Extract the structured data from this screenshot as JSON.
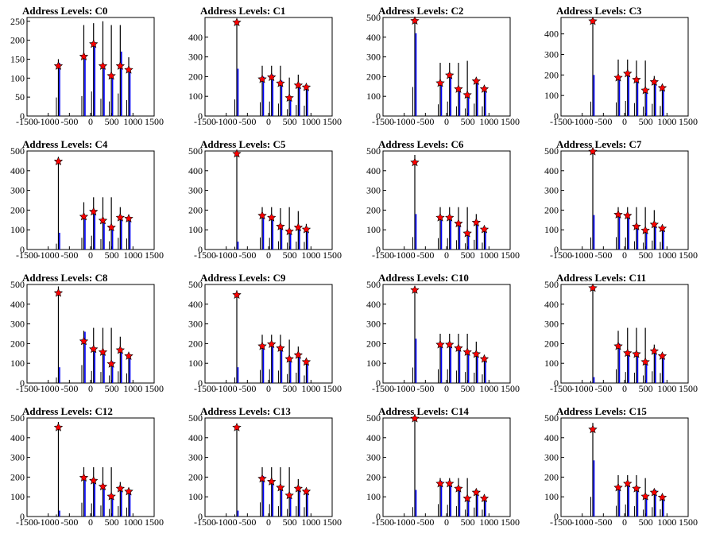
{
  "figure": {
    "title_prefix": "Address Levels: "
  },
  "style": {
    "axis_color": "#000000",
    "bar_black": "#000000",
    "bar_blue": "#0000ff",
    "star_fill": "#ff0000",
    "star_stroke": "#000000"
  },
  "chart_data": [
    {
      "type": "histogram",
      "title": "Address Levels: C0",
      "xlim": [
        -1500,
        1500
      ],
      "ylim": [
        0,
        260
      ],
      "yticks": [
        0,
        50,
        100,
        150,
        200,
        250
      ],
      "xticks": [
        -1500,
        -1000,
        -500,
        0,
        500,
        1000,
        1500
      ],
      "peaks_x": [
        -760,
        -160,
        70,
        290,
        490,
        700,
        900
      ],
      "black": [
        150,
        240,
        245,
        250,
        240,
        240,
        155
      ],
      "blue": [
        140,
        150,
        185,
        130,
        110,
        170,
        120
      ],
      "stars": [
        132,
        157,
        190,
        132,
        106,
        132,
        122
      ]
    },
    {
      "type": "histogram",
      "title": "Address Levels: C1",
      "xlim": [
        -1500,
        1500
      ],
      "ylim": [
        0,
        500
      ],
      "yticks": [
        0,
        100,
        200,
        300,
        400
      ],
      "xticks": [
        -1500,
        -1000,
        -500,
        0,
        500,
        1000,
        1500
      ],
      "peaks_x": [
        -750,
        -150,
        70,
        280,
        490,
        700,
        890
      ],
      "black": [
        490,
        255,
        255,
        255,
        195,
        210,
        160
      ],
      "blue": [
        240,
        200,
        210,
        180,
        100,
        160,
        150
      ],
      "stars": [
        475,
        187,
        197,
        166,
        92,
        156,
        146
      ]
    },
    {
      "type": "histogram",
      "title": "Address Levels: C2",
      "xlim": [
        -1500,
        1500
      ],
      "ylim": [
        0,
        500
      ],
      "yticks": [
        0,
        100,
        200,
        300,
        400,
        500
      ],
      "xticks": [
        -1500,
        -1000,
        -500,
        0,
        500,
        1000,
        1500
      ],
      "peaks_x": [
        -750,
        -150,
        70,
        280,
        490,
        700,
        890
      ],
      "black": [
        490,
        270,
        270,
        270,
        280,
        185,
        140
      ],
      "blue": [
        420,
        170,
        210,
        140,
        110,
        180,
        140
      ],
      "stars": [
        483,
        167,
        207,
        137,
        107,
        177,
        137
      ]
    },
    {
      "type": "histogram",
      "title": "Address Levels: C3",
      "xlim": [
        -1500,
        1500
      ],
      "ylim": [
        0,
        480
      ],
      "yticks": [
        0,
        100,
        200,
        300,
        400
      ],
      "xticks": [
        -1500,
        -1000,
        -500,
        0,
        500,
        1000,
        1500
      ],
      "peaks_x": [
        -750,
        -150,
        70,
        280,
        490,
        700,
        890
      ],
      "black": [
        480,
        275,
        275,
        270,
        270,
        195,
        140
      ],
      "blue": [
        200,
        190,
        210,
        180,
        130,
        170,
        140
      ],
      "stars": [
        462,
        187,
        207,
        177,
        125,
        166,
        137
      ]
    },
    {
      "type": "histogram",
      "title": "Address Levels: C4",
      "xlim": [
        -1500,
        1500
      ],
      "ylim": [
        0,
        500
      ],
      "yticks": [
        0,
        100,
        200,
        300,
        400,
        500
      ],
      "xticks": [
        -1500,
        -1000,
        -500,
        0,
        500,
        1000,
        1500
      ],
      "peaks_x": [
        -760,
        -160,
        70,
        290,
        490,
        700,
        900
      ],
      "black": [
        470,
        240,
        265,
        265,
        265,
        215,
        175
      ],
      "blue": [
        85,
        170,
        200,
        150,
        120,
        170,
        160
      ],
      "stars": [
        447,
        167,
        192,
        147,
        112,
        162,
        157
      ]
    },
    {
      "type": "histogram",
      "title": "Address Levels: C5",
      "xlim": [
        -1500,
        1500
      ],
      "ylim": [
        0,
        500
      ],
      "yticks": [
        0,
        100,
        200,
        300,
        400,
        500
      ],
      "xticks": [
        -1500,
        -1000,
        -500,
        0,
        500,
        1000,
        1500
      ],
      "peaks_x": [
        -750,
        -150,
        70,
        280,
        490,
        700,
        890
      ],
      "black": [
        495,
        215,
        215,
        210,
        215,
        195,
        130
      ],
      "blue": [
        40,
        175,
        170,
        120,
        100,
        115,
        110
      ],
      "stars": [
        486,
        172,
        162,
        117,
        92,
        112,
        102
      ]
    },
    {
      "type": "histogram",
      "title": "Address Levels: C6",
      "xlim": [
        -1500,
        1500
      ],
      "ylim": [
        0,
        500
      ],
      "yticks": [
        0,
        100,
        200,
        300,
        400,
        500
      ],
      "xticks": [
        -1500,
        -1000,
        -500,
        0,
        500,
        1000,
        1500
      ],
      "peaks_x": [
        -750,
        -150,
        70,
        280,
        490,
        700,
        890
      ],
      "black": [
        480,
        215,
        215,
        215,
        215,
        180,
        115
      ],
      "blue": [
        180,
        165,
        165,
        135,
        90,
        140,
        100
      ],
      "stars": [
        442,
        162,
        162,
        132,
        82,
        137,
        102
      ]
    },
    {
      "type": "histogram",
      "title": "Address Levels: C7",
      "xlim": [
        -1500,
        1500
      ],
      "ylim": [
        0,
        500
      ],
      "yticks": [
        0,
        100,
        200,
        300,
        400,
        500
      ],
      "xticks": [
        -1500,
        -1000,
        -500,
        0,
        500,
        1000,
        1500
      ],
      "peaks_x": [
        -750,
        -150,
        70,
        280,
        490,
        700,
        890
      ],
      "black": [
        500,
        215,
        215,
        215,
        215,
        200,
        120
      ],
      "blue": [
        175,
        180,
        175,
        120,
        100,
        130,
        110
      ],
      "stars": [
        497,
        177,
        172,
        117,
        97,
        127,
        107
      ]
    },
    {
      "type": "histogram",
      "title": "Address Levels: C8",
      "xlim": [
        -1500,
        1500
      ],
      "ylim": [
        0,
        500
      ],
      "yticks": [
        0,
        100,
        200,
        300,
        400,
        500
      ],
      "xticks": [
        -1500,
        -1000,
        -500,
        0,
        500,
        1000,
        1500
      ],
      "peaks_x": [
        -760,
        -160,
        70,
        290,
        490,
        700,
        900
      ],
      "black": [
        490,
        265,
        280,
        280,
        280,
        235,
        150
      ],
      "blue": [
        80,
        260,
        175,
        160,
        110,
        170,
        140
      ],
      "stars": [
        457,
        212,
        172,
        157,
        97,
        167,
        137
      ]
    },
    {
      "type": "histogram",
      "title": "Address Levels: C9",
      "xlim": [
        -1500,
        1500
      ],
      "ylim": [
        0,
        500
      ],
      "yticks": [
        0,
        100,
        200,
        300,
        400,
        500
      ],
      "xticks": [
        -1500,
        -1000,
        -500,
        0,
        500,
        1000,
        1500
      ],
      "peaks_x": [
        -750,
        -150,
        70,
        280,
        490,
        700,
        890
      ],
      "black": [
        470,
        245,
        245,
        245,
        220,
        185,
        125
      ],
      "blue": [
        80,
        190,
        200,
        180,
        130,
        150,
        110
      ],
      "stars": [
        447,
        187,
        197,
        177,
        122,
        142,
        107
      ]
    },
    {
      "type": "histogram",
      "title": "Address Levels: C10",
      "xlim": [
        -1500,
        1500
      ],
      "ylim": [
        0,
        500
      ],
      "yticks": [
        0,
        100,
        200,
        300,
        400,
        500
      ],
      "xticks": [
        -1500,
        -1000,
        -500,
        0,
        500,
        1000,
        1500
      ],
      "peaks_x": [
        -750,
        -150,
        70,
        280,
        490,
        700,
        890
      ],
      "black": [
        490,
        250,
        250,
        250,
        250,
        210,
        130
      ],
      "blue": [
        225,
        200,
        200,
        180,
        160,
        150,
        125
      ],
      "stars": [
        472,
        195,
        195,
        177,
        157,
        147,
        122
      ]
    },
    {
      "type": "histogram",
      "title": "Address Levels: C11",
      "xlim": [
        -1500,
        1500
      ],
      "ylim": [
        0,
        500
      ],
      "yticks": [
        0,
        100,
        200,
        300,
        400,
        500
      ],
      "xticks": [
        -1500,
        -1000,
        -500,
        0,
        500,
        1000,
        1500
      ],
      "peaks_x": [
        -750,
        -150,
        70,
        280,
        490,
        700,
        890
      ],
      "black": [
        490,
        265,
        280,
        280,
        280,
        195,
        140
      ],
      "blue": [
        30,
        200,
        160,
        150,
        110,
        170,
        145
      ],
      "stars": [
        482,
        187,
        152,
        147,
        107,
        162,
        137
      ]
    },
    {
      "type": "histogram",
      "title": "Address Levels: C12",
      "xlim": [
        -1500,
        1500
      ],
      "ylim": [
        0,
        500
      ],
      "yticks": [
        0,
        100,
        200,
        300,
        400,
        500
      ],
      "xticks": [
        -1500,
        -1000,
        -500,
        0,
        500,
        1000,
        1500
      ],
      "peaks_x": [
        -760,
        -160,
        70,
        290,
        490,
        700,
        900
      ],
      "black": [
        480,
        250,
        250,
        250,
        250,
        175,
        140
      ],
      "blue": [
        30,
        200,
        190,
        160,
        110,
        150,
        130
      ],
      "stars": [
        452,
        197,
        182,
        152,
        102,
        142,
        127
      ]
    },
    {
      "type": "histogram",
      "title": "Address Levels: C13",
      "xlim": [
        -1500,
        1500
      ],
      "ylim": [
        0,
        500
      ],
      "yticks": [
        0,
        100,
        200,
        300,
        400,
        500
      ],
      "xticks": [
        -1500,
        -1000,
        -500,
        0,
        500,
        1000,
        1500
      ],
      "peaks_x": [
        -750,
        -150,
        70,
        280,
        490,
        700,
        890
      ],
      "black": [
        470,
        250,
        250,
        250,
        250,
        190,
        135
      ],
      "blue": [
        30,
        205,
        180,
        150,
        110,
        150,
        135
      ],
      "stars": [
        452,
        192,
        177,
        147,
        107,
        142,
        127
      ]
    },
    {
      "type": "histogram",
      "title": "Address Levels: C14",
      "xlim": [
        -1500,
        1500
      ],
      "ylim": [
        0,
        500
      ],
      "yticks": [
        0,
        100,
        200,
        300,
        400,
        500
      ],
      "xticks": [
        -1500,
        -1000,
        -500,
        0,
        500,
        1000,
        1500
      ],
      "peaks_x": [
        -750,
        -150,
        70,
        280,
        490,
        700,
        890
      ],
      "black": [
        520,
        195,
        195,
        195,
        195,
        140,
        110
      ],
      "blue": [
        135,
        180,
        170,
        150,
        100,
        130,
        100
      ],
      "stars": [
        497,
        167,
        167,
        142,
        92,
        122,
        92
      ]
    },
    {
      "type": "histogram",
      "title": "Address Levels: C15",
      "xlim": [
        -1500,
        1500
      ],
      "ylim": [
        0,
        500
      ],
      "yticks": [
        0,
        100,
        200,
        300,
        400,
        500
      ],
      "xticks": [
        -1500,
        -1000,
        -500,
        0,
        500,
        1000,
        1500
      ],
      "peaks_x": [
        -750,
        -150,
        70,
        280,
        490,
        700,
        890
      ],
      "black": [
        475,
        210,
        210,
        210,
        195,
        140,
        110
      ],
      "blue": [
        285,
        155,
        175,
        150,
        100,
        135,
        105
      ],
      "stars": [
        442,
        147,
        167,
        142,
        102,
        122,
        97
      ]
    }
  ]
}
